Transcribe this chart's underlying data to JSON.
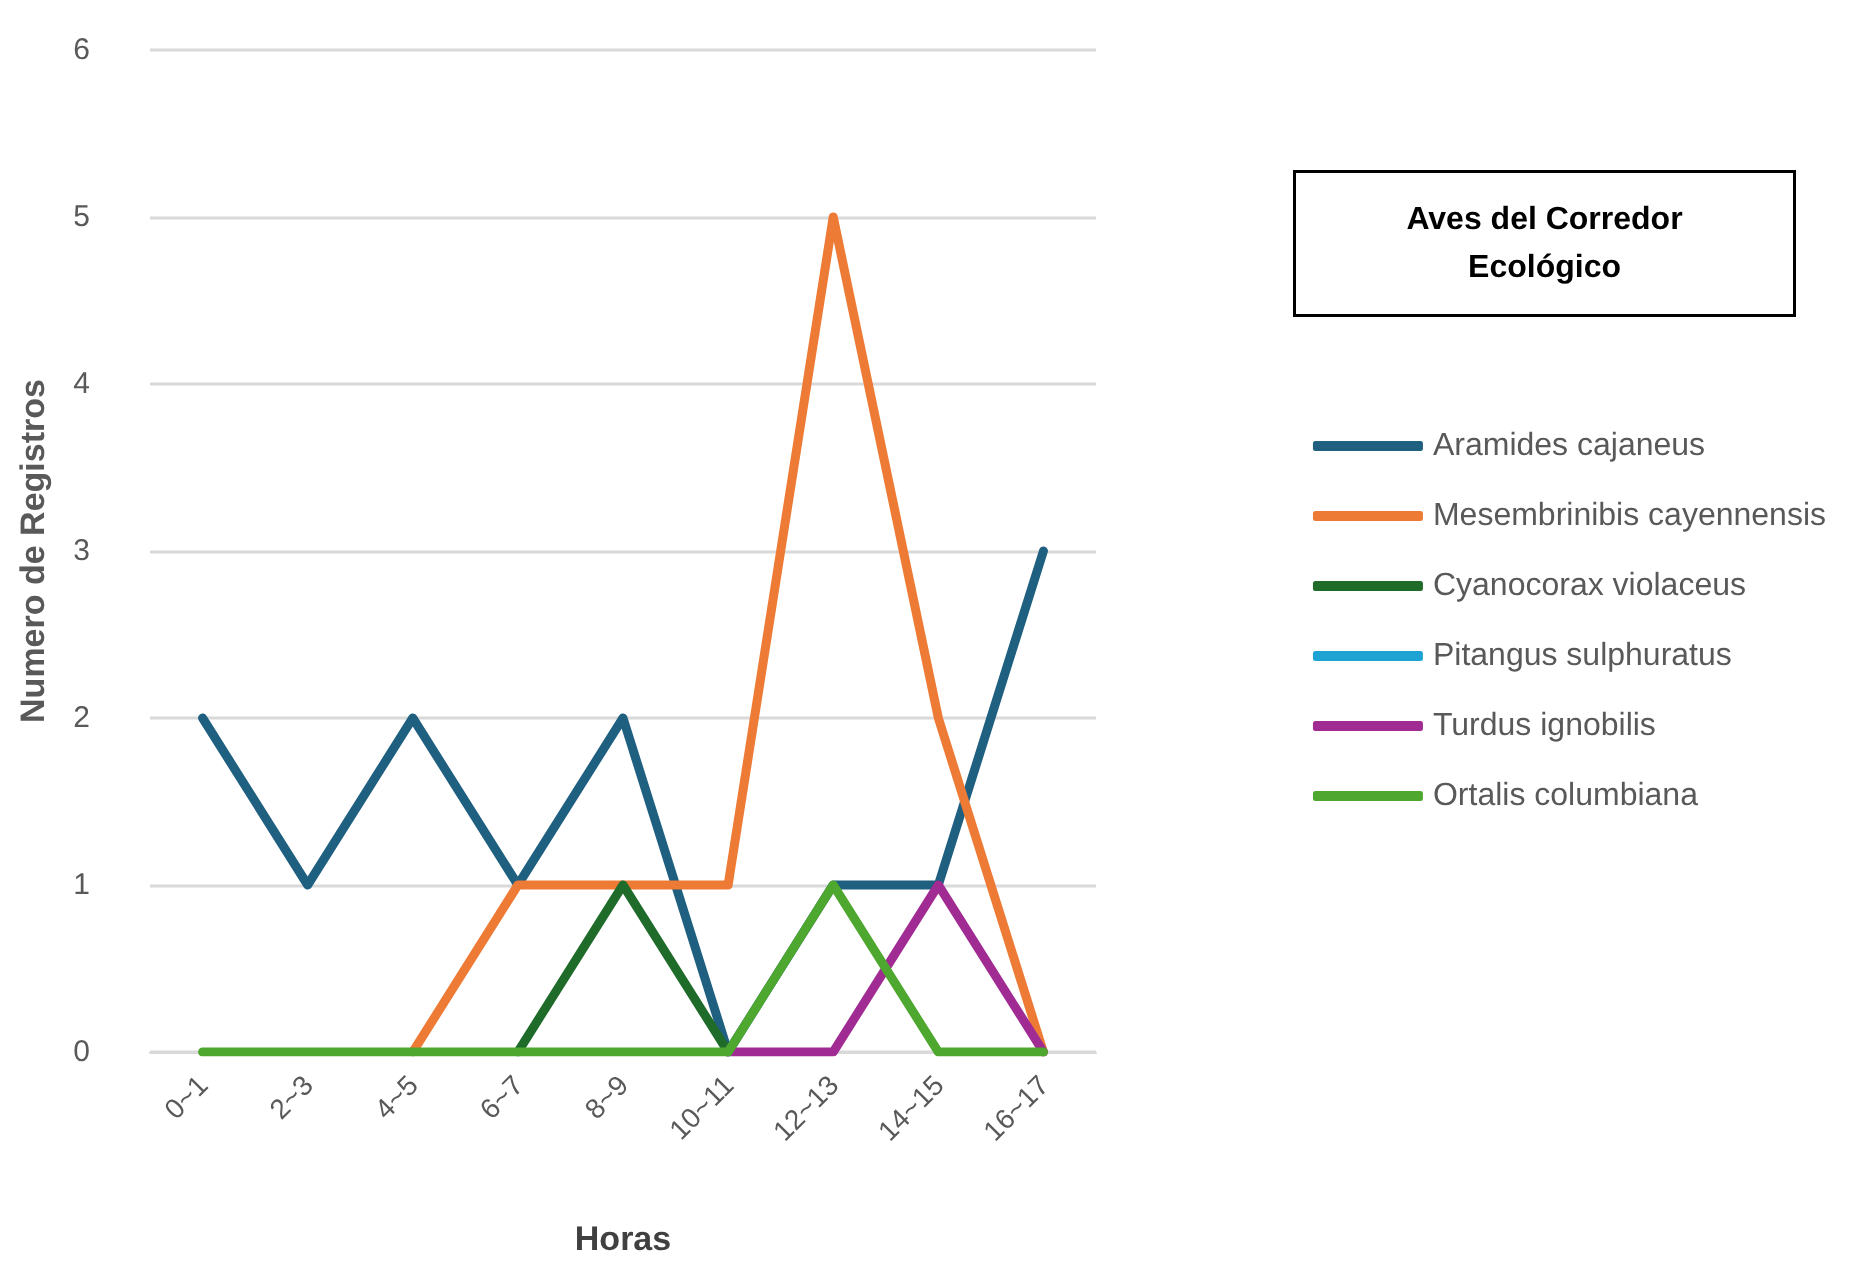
{
  "chart_data": {
    "type": "line",
    "xlabel": "Horas",
    "ylabel": "Numero de Registros",
    "legend_title": "Aves del Corredor Ecológico",
    "categories": [
      "0~1",
      "2~3",
      "4~5",
      "6~7",
      "8~9",
      "10~11",
      "12~13",
      "14~15",
      "16~17"
    ],
    "series": [
      {
        "name": "Aramides cajaneus",
        "color": "#1f5f80",
        "values": [
          2,
          1,
          2,
          1,
          2,
          0,
          1,
          1,
          3
        ]
      },
      {
        "name": "Mesembrinibis cayennensis",
        "color": "#ee7b35",
        "values": [
          null,
          null,
          0,
          1,
          1,
          1,
          5,
          2,
          0
        ]
      },
      {
        "name": "Cyanocorax violaceus",
        "color": "#1e6b2a",
        "values": [
          null,
          null,
          null,
          0,
          1,
          0,
          null,
          null,
          null
        ]
      },
      {
        "name": "Pitangus sulphuratus",
        "color": "#1fa2d4",
        "values": [
          null,
          null,
          null,
          null,
          null,
          null,
          null,
          null,
          null
        ]
      },
      {
        "name": "Turdus ignobilis",
        "color": "#a02b93",
        "values": [
          null,
          null,
          null,
          null,
          null,
          0,
          0,
          1,
          0
        ]
      },
      {
        "name": "Ortalis columbiana",
        "color": "#4ea72e",
        "values": [
          0,
          0,
          0,
          0,
          0,
          0,
          1,
          0,
          0
        ]
      }
    ],
    "ylim": [
      0,
      6
    ],
    "yticks": [
      0,
      1,
      2,
      3,
      4,
      5,
      6
    ],
    "grid": "y",
    "legend": "right",
    "marker": "none",
    "line_style": "solid"
  }
}
